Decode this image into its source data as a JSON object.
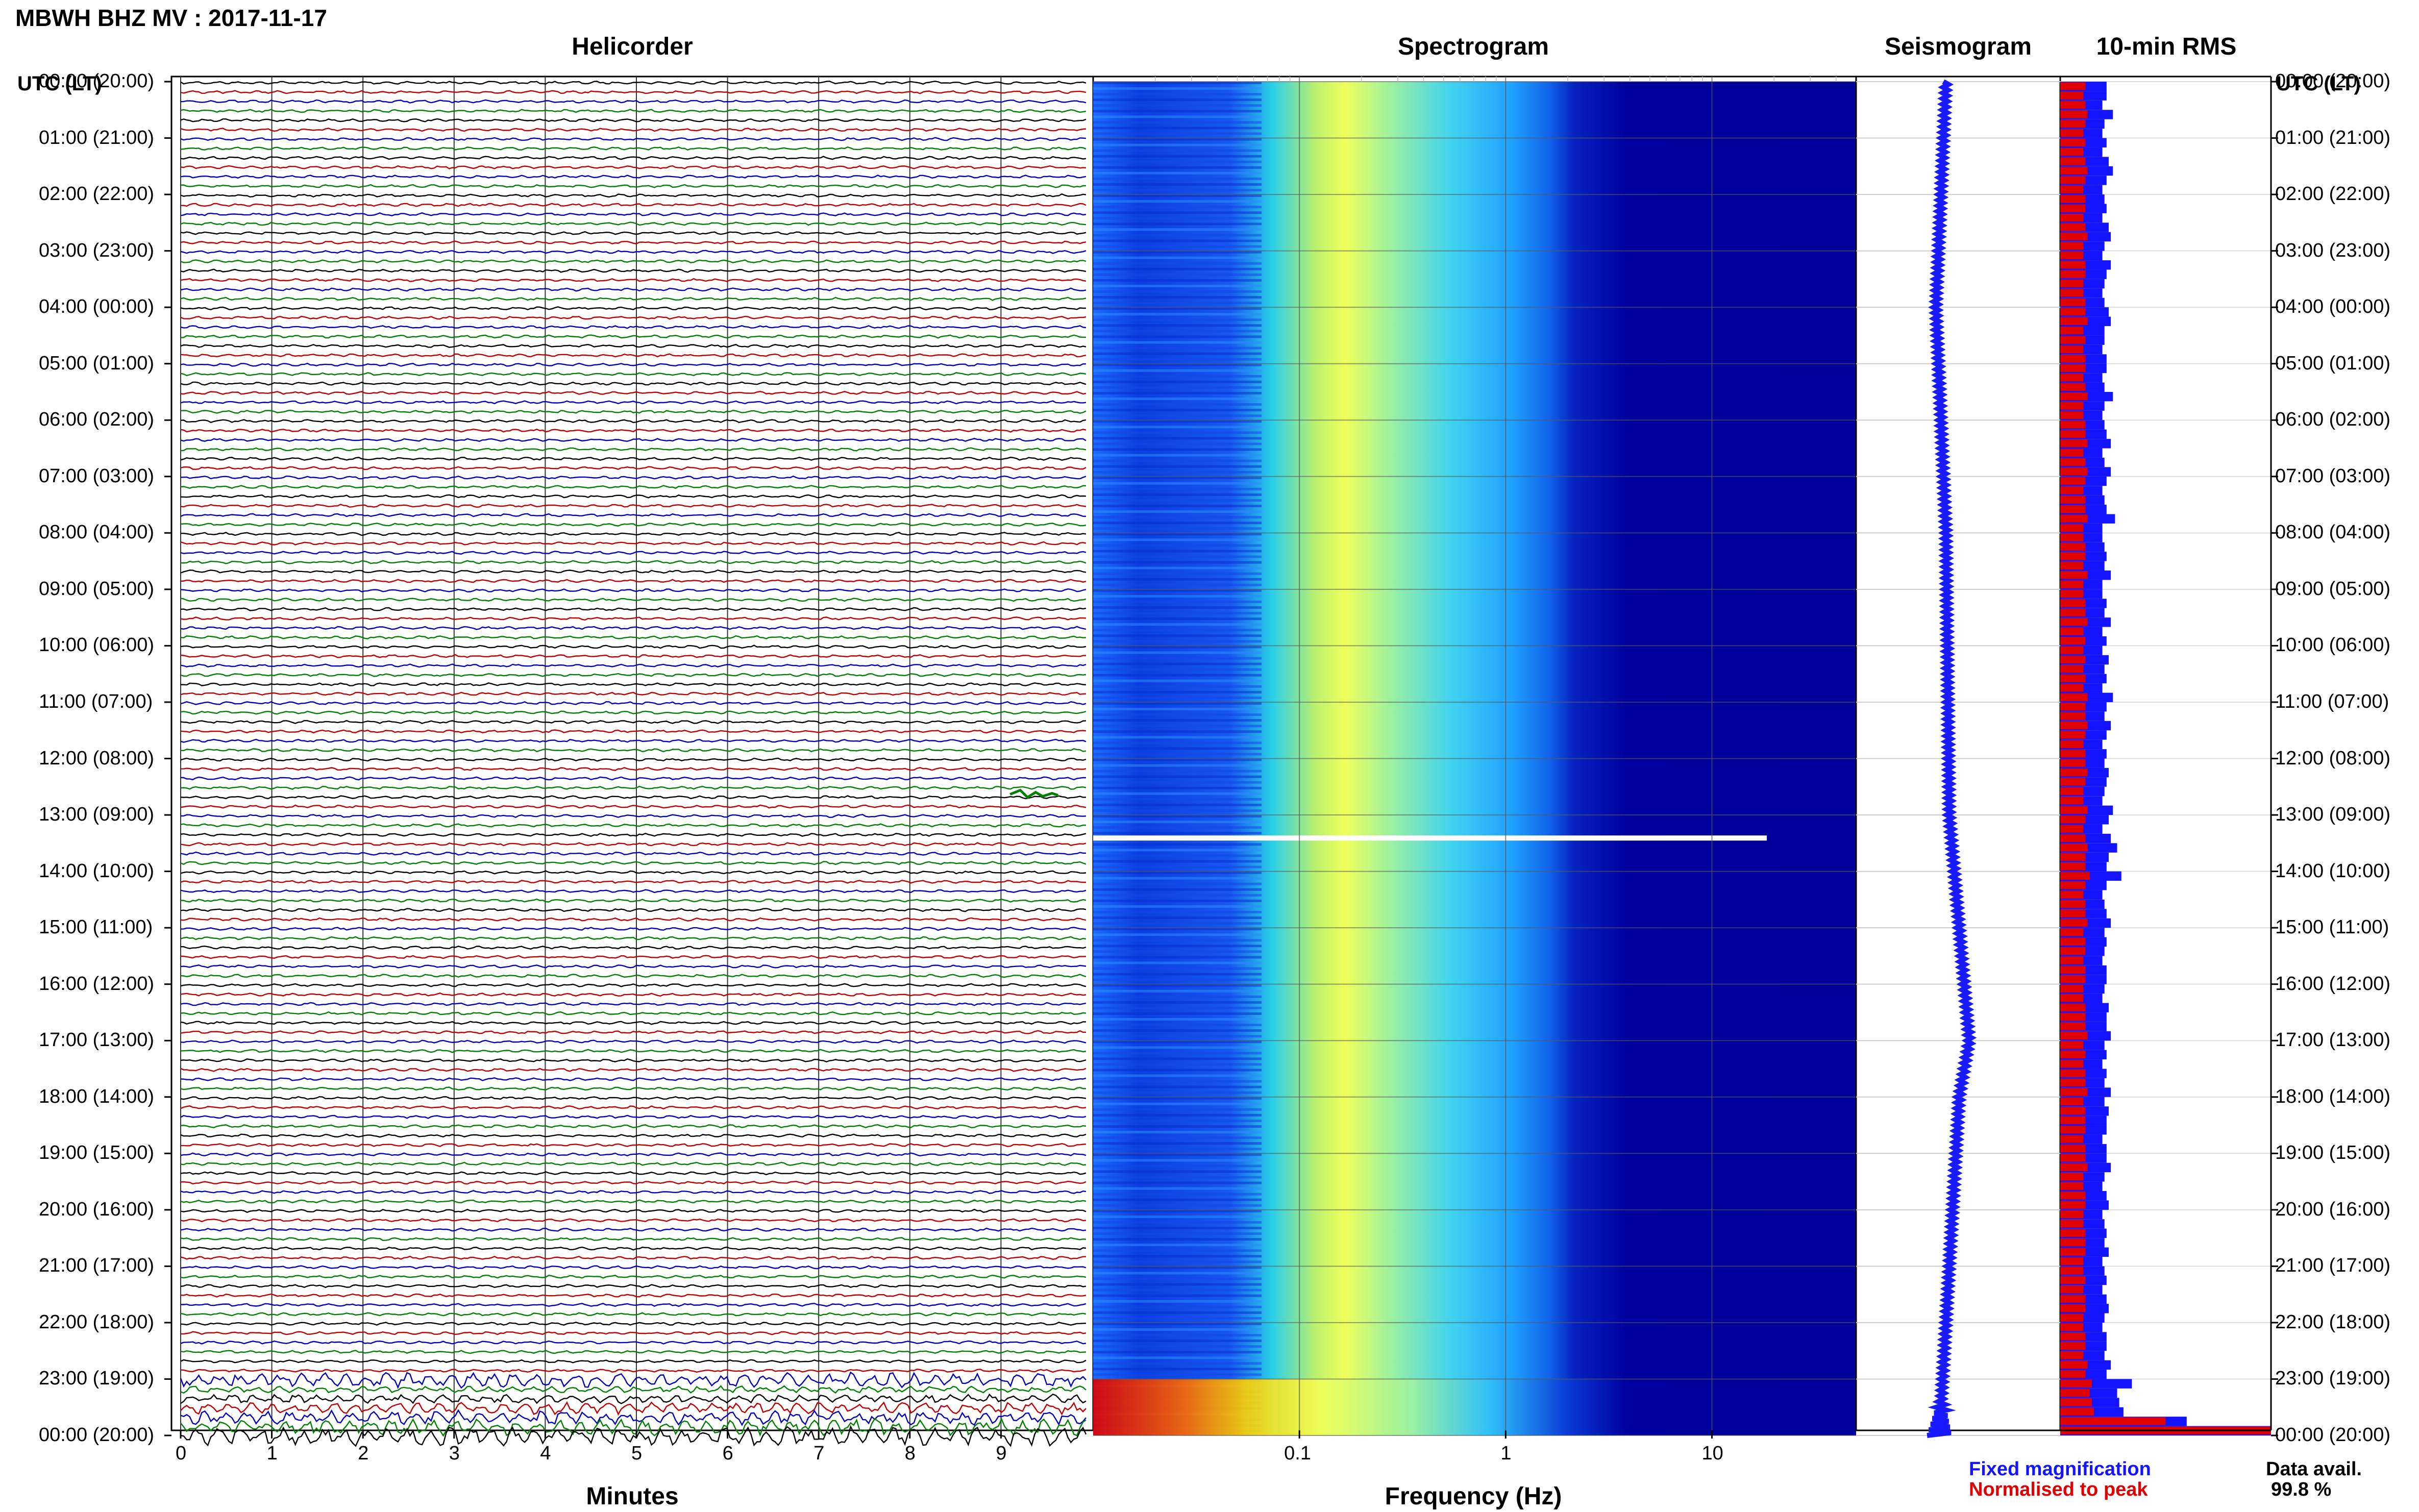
{
  "header": {
    "station_title": "MBWH BHZ MV : 2017-11-17",
    "utc_header_left": "UTC (LT)",
    "utc_header_right": "UTC (LT)"
  },
  "panels": {
    "helicorder": "Helicorder",
    "spectrogram": "Spectrogram",
    "seismogram": "Seismogram",
    "rms": "10-min RMS"
  },
  "time_labels": [
    "00:00 (20:00)",
    "01:00 (21:00)",
    "02:00 (22:00)",
    "03:00 (23:00)",
    "04:00 (00:00)",
    "05:00 (01:00)",
    "06:00 (02:00)",
    "07:00 (03:00)",
    "08:00 (04:00)",
    "09:00 (05:00)",
    "10:00 (06:00)",
    "11:00 (07:00)",
    "12:00 (08:00)",
    "13:00 (09:00)",
    "14:00 (10:00)",
    "15:00 (11:00)",
    "16:00 (12:00)",
    "17:00 (13:00)",
    "18:00 (14:00)",
    "19:00 (15:00)",
    "20:00 (16:00)",
    "21:00 (17:00)",
    "22:00 (18:00)",
    "23:00 (19:00)",
    "00:00 (20:00)"
  ],
  "footer": {
    "minutes_label": "Minutes",
    "frequency_label": "Frequency (Hz)",
    "legend_fixed": "Fixed magnification",
    "legend_normalised": "Normalised to peak",
    "data_avail_label": "Data avail.",
    "data_avail_value": "99.8 %"
  },
  "colors": {
    "trace_cycle": [
      "#000000",
      "#c00000",
      "#0000c0",
      "#008000"
    ],
    "seismogram": "#1a1aff",
    "rms_fixed": "#1414ff",
    "rms_normalised": "#e00000",
    "spectrogram_high": "#ffff40",
    "spectrogram_low": "#00009a"
  },
  "chart_data": [
    {
      "type": "line",
      "name": "helicorder",
      "xlabel": "Minutes",
      "x_ticks": [
        0,
        1,
        2,
        3,
        4,
        5,
        6,
        7,
        8,
        9
      ],
      "xlim": [
        0,
        10
      ],
      "rows_per_hour": 6,
      "hours": 24,
      "events": [
        {
          "hour": 12,
          "minute_start": 9.1,
          "minute_end": 9.4
        },
        {
          "hour": 23,
          "minute_start": 0.0,
          "minute_end": 10.0
        }
      ]
    },
    {
      "type": "heatmap",
      "name": "spectrogram",
      "xlabel": "Frequency (Hz)",
      "x_scale": "log",
      "x_ticks": [
        "0.1",
        "1",
        "10"
      ],
      "xlim": [
        0.01,
        50
      ],
      "peak_energy_hz": [
        0.15,
        0.35
      ],
      "gap_hour": 13.4,
      "high_energy_low_freq_hours": [
        23.0,
        24.0
      ]
    },
    {
      "type": "line",
      "name": "seismogram",
      "drift": [
        [
          0,
          0.0
        ],
        [
          4,
          -0.15
        ],
        [
          8,
          0.0
        ],
        [
          13,
          0.05
        ],
        [
          17,
          0.35
        ],
        [
          18,
          0.2
        ],
        [
          21,
          0.05
        ],
        [
          24,
          -0.1
        ]
      ]
    },
    {
      "type": "bar",
      "name": "10-min RMS",
      "series": [
        {
          "name": "Fixed magnification",
          "values": [
            0.22,
            0.22,
            0.2,
            0.25,
            0.21,
            0.2,
            0.22,
            0.2,
            0.23,
            0.25,
            0.22,
            0.2,
            0.21,
            0.22,
            0.2,
            0.23,
            0.24,
            0.21,
            0.2,
            0.24,
            0.22,
            0.21,
            0.2,
            0.21,
            0.23,
            0.24,
            0.21,
            0.21,
            0.2,
            0.22,
            0.22,
            0.2,
            0.21,
            0.25,
            0.21,
            0.2,
            0.21,
            0.22,
            0.24,
            0.2,
            0.21,
            0.24,
            0.22,
            0.2,
            0.21,
            0.22,
            0.26,
            0.2,
            0.2,
            0.21,
            0.22,
            0.21,
            0.24,
            0.2,
            0.2,
            0.22,
            0.21,
            0.24,
            0.2,
            0.22,
            0.2,
            0.23,
            0.21,
            0.22,
            0.2,
            0.25,
            0.22,
            0.21,
            0.24,
            0.22,
            0.2,
            0.22,
            0.21,
            0.23,
            0.22,
            0.21,
            0.2,
            0.25,
            0.23,
            0.2,
            0.24,
            0.27,
            0.23,
            0.22,
            0.29,
            0.22,
            0.2,
            0.21,
            0.22,
            0.24,
            0.21,
            0.22,
            0.21,
            0.2,
            0.22,
            0.22,
            0.21,
            0.2,
            0.23,
            0.22,
            0.22,
            0.24,
            0.21,
            0.22,
            0.2,
            0.22,
            0.21,
            0.24,
            0.21,
            0.23,
            0.22,
            0.22,
            0.2,
            0.22,
            0.22,
            0.24,
            0.21,
            0.2,
            0.22,
            0.23,
            0.2,
            0.21,
            0.22,
            0.21,
            0.23,
            0.2,
            0.21,
            0.22,
            0.2,
            0.22,
            0.23,
            0.21,
            0.2,
            0.22,
            0.22,
            0.21,
            0.24,
            0.22,
            0.34,
            0.27,
            0.28,
            0.3,
            0.6,
            1.0
          ]
        },
        {
          "name": "Normalised to peak",
          "values": [
            0.12,
            0.11,
            0.12,
            0.13,
            0.12,
            0.11,
            0.12,
            0.11,
            0.12,
            0.13,
            0.12,
            0.11,
            0.12,
            0.12,
            0.11,
            0.12,
            0.13,
            0.11,
            0.11,
            0.12,
            0.12,
            0.11,
            0.11,
            0.12,
            0.12,
            0.13,
            0.11,
            0.12,
            0.11,
            0.12,
            0.12,
            0.11,
            0.12,
            0.13,
            0.11,
            0.11,
            0.12,
            0.12,
            0.13,
            0.11,
            0.12,
            0.13,
            0.12,
            0.11,
            0.12,
            0.12,
            0.13,
            0.11,
            0.11,
            0.12,
            0.12,
            0.11,
            0.13,
            0.11,
            0.11,
            0.12,
            0.12,
            0.13,
            0.11,
            0.12,
            0.11,
            0.12,
            0.11,
            0.12,
            0.11,
            0.13,
            0.12,
            0.12,
            0.13,
            0.12,
            0.11,
            0.12,
            0.12,
            0.13,
            0.12,
            0.11,
            0.11,
            0.13,
            0.12,
            0.11,
            0.12,
            0.13,
            0.12,
            0.12,
            0.14,
            0.12,
            0.11,
            0.12,
            0.12,
            0.13,
            0.11,
            0.12,
            0.12,
            0.11,
            0.12,
            0.12,
            0.11,
            0.11,
            0.12,
            0.12,
            0.12,
            0.13,
            0.11,
            0.12,
            0.11,
            0.12,
            0.12,
            0.13,
            0.11,
            0.12,
            0.12,
            0.12,
            0.11,
            0.12,
            0.12,
            0.13,
            0.11,
            0.11,
            0.12,
            0.12,
            0.11,
            0.11,
            0.12,
            0.12,
            0.12,
            0.11,
            0.11,
            0.12,
            0.11,
            0.12,
            0.12,
            0.11,
            0.11,
            0.12,
            0.12,
            0.11,
            0.13,
            0.12,
            0.15,
            0.14,
            0.15,
            0.16,
            0.5,
            1.0
          ]
        }
      ]
    }
  ]
}
